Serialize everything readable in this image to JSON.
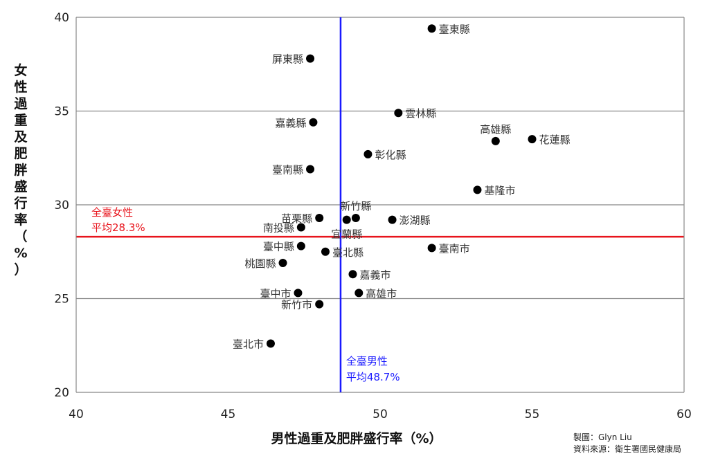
{
  "chart_data": {
    "type": "scatter",
    "xlabel": "男性過重及肥胖盛行率（%）",
    "ylabel_chars": [
      "女",
      "性",
      "過",
      "重",
      "及",
      "肥",
      "胖",
      "盛",
      "行",
      "率",
      "（",
      "%",
      "）"
    ],
    "xlim": [
      40,
      60
    ],
    "ylim": [
      20,
      40
    ],
    "x_ticks": [
      40,
      45,
      50,
      55,
      60
    ],
    "y_ticks": [
      20,
      25,
      30,
      35,
      40
    ],
    "grid": "horizontal",
    "points": [
      {
        "label": "臺東縣",
        "x": 51.7,
        "y": 39.4,
        "side": "right"
      },
      {
        "label": "屏東縣",
        "x": 47.7,
        "y": 37.8,
        "side": "left"
      },
      {
        "label": "雲林縣",
        "x": 50.6,
        "y": 34.9,
        "side": "right"
      },
      {
        "label": "嘉義縣",
        "x": 47.8,
        "y": 34.4,
        "side": "left"
      },
      {
        "label": "高雄縣",
        "x": 53.8,
        "y": 33.4,
        "side": "above"
      },
      {
        "label": "花蓮縣",
        "x": 55.0,
        "y": 33.5,
        "side": "right"
      },
      {
        "label": "彰化縣",
        "x": 49.6,
        "y": 32.7,
        "side": "right"
      },
      {
        "label": "臺南縣",
        "x": 47.7,
        "y": 31.9,
        "side": "left"
      },
      {
        "label": "基隆市",
        "x": 53.2,
        "y": 30.8,
        "side": "right"
      },
      {
        "label": "新竹縣",
        "x": 49.2,
        "y": 29.3,
        "side": "above"
      },
      {
        "label": "苗栗縣",
        "x": 48.0,
        "y": 29.3,
        "side": "left"
      },
      {
        "label": "宜蘭縣",
        "x": 48.9,
        "y": 29.2,
        "side": "below"
      },
      {
        "label": "澎湖縣",
        "x": 50.4,
        "y": 29.2,
        "side": "right"
      },
      {
        "label": "南投縣",
        "x": 47.4,
        "y": 28.8,
        "side": "left"
      },
      {
        "label": "臺中縣",
        "x": 47.4,
        "y": 27.8,
        "side": "left"
      },
      {
        "label": "臺南市",
        "x": 51.7,
        "y": 27.7,
        "side": "right"
      },
      {
        "label": "臺北縣",
        "x": 48.2,
        "y": 27.5,
        "side": "right"
      },
      {
        "label": "桃園縣",
        "x": 46.8,
        "y": 26.9,
        "side": "left"
      },
      {
        "label": "嘉義市",
        "x": 49.1,
        "y": 26.3,
        "side": "right"
      },
      {
        "label": "臺中市",
        "x": 47.3,
        "y": 25.3,
        "side": "left"
      },
      {
        "label": "高雄市",
        "x": 49.3,
        "y": 25.3,
        "side": "right"
      },
      {
        "label": "新竹市",
        "x": 48.0,
        "y": 24.7,
        "side": "left"
      },
      {
        "label": "臺北市",
        "x": 46.4,
        "y": 22.6,
        "side": "left"
      }
    ],
    "female_avg": {
      "value": 28.3,
      "label_line1": "全臺女性",
      "label_line2": "平均28.3%",
      "color": "#e8141c"
    },
    "male_avg": {
      "value": 48.7,
      "label_line1": "全臺男性",
      "label_line2": "平均48.7%",
      "color": "#1a1aff"
    },
    "point_color": "#000000",
    "grid_color": "#888888"
  },
  "credits": {
    "line1": "製圖：Glyn Liu",
    "line2": "資料來源：衛生署國民健康局"
  }
}
